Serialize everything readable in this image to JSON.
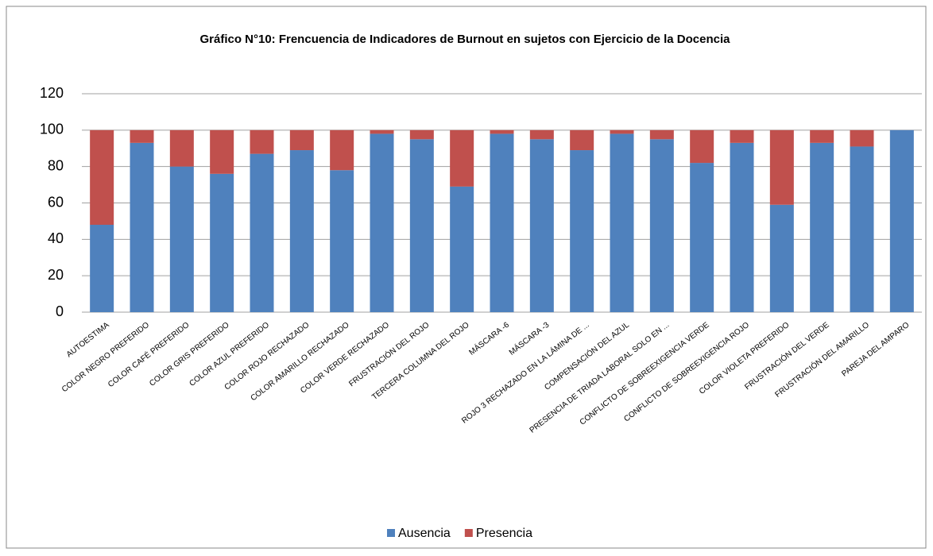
{
  "chart_data": {
    "type": "stacked_bar",
    "title": "Gráfico N°10: Frencuencia de Indicadores de Burnout en sujetos con Ejercicio de la Docencia",
    "categories": [
      "AUTOESTIMA",
      "COLOR NEGRO PREFERIDO",
      "COLOR CAFÉ PREFERIDO",
      "COLOR GRIS PREFERIDO",
      "COLOR AZUL PREFERIDO",
      "COLOR ROJO RECHAZADO",
      "COLOR AMARILLO RECHAZADO",
      "COLOR VERDE RECHAZADO",
      "FRUSTRACIÓN DEL ROJO",
      "TERCERA COLUMNA DEL ROJO",
      "MÁSCARA -6",
      "MÁSCARA -3",
      "ROJO 3 RECHAZADO EN LA LÁMINA DE ...",
      "COMPENSACIÓN DEL AZUL",
      "PRESENCIA DE TRIADA LABORAL SOLO EN ...",
      "CONFLICTO DE SOBREEXIGENCIA VERDE",
      "CONFLICTO DE SOBREEXIGENCIA ROJO",
      "COLOR VIOLETA PREFERIDO",
      "FRUSTRACIÓN DEL VERDE",
      "FRUSTRACIÓN DEL AMARILLO",
      "PAREJA DEL AMPARO"
    ],
    "series": [
      {
        "name": "Ausencia",
        "color": "#4f81bd",
        "values": [
          48,
          93,
          80,
          76,
          87,
          89,
          78,
          98,
          95,
          69,
          98,
          95,
          89,
          98,
          95,
          82,
          93,
          59,
          93,
          91,
          100
        ]
      },
      {
        "name": "Presencia",
        "color": "#c0504d",
        "values": [
          52,
          7,
          20,
          24,
          13,
          11,
          22,
          2,
          5,
          31,
          2,
          5,
          11,
          2,
          5,
          18,
          7,
          41,
          7,
          9,
          0
        ]
      }
    ],
    "ylim": [
      0,
      120
    ],
    "yticks": [
      0,
      20,
      40,
      60,
      80,
      100,
      120
    ],
    "grid": true,
    "legend": "bottom"
  }
}
